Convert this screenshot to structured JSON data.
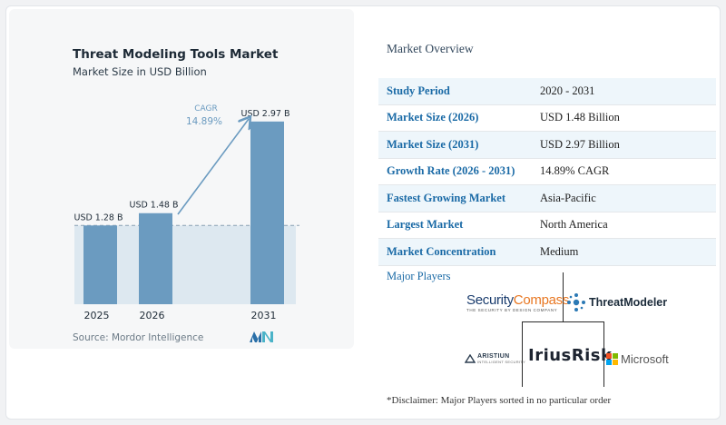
{
  "chart": {
    "title": "Threat Modeling Tools Market",
    "subtitle": "Market Size in USD Billion",
    "source": "Source: Mordor Intelligence",
    "cagr_label": "CAGR",
    "cagr_value": "14.89%"
  },
  "chart_data": {
    "type": "bar",
    "title": "Threat Modeling Tools Market",
    "subtitle": "Market Size in USD Billion",
    "categories": [
      "2025",
      "2026",
      "2031"
    ],
    "values": [
      1.28,
      1.48,
      2.97
    ],
    "data_labels": [
      "USD 1.28 B",
      "USD 1.48 B",
      "USD 2.97 B"
    ],
    "xlabel": "",
    "ylabel": "",
    "ylim": [
      0,
      3.1
    ],
    "grid": false,
    "reference_line_value": 1.28,
    "annotation": {
      "text": "CAGR",
      "value": "14.89%"
    },
    "colors": {
      "bar": "#6b9bc0",
      "bar_light": "#8fb6d4",
      "arrow": "#6b9bc0",
      "band": "#dde8f0"
    }
  },
  "overview": {
    "title": "Market Overview",
    "rows": [
      {
        "key": "Study Period",
        "value": "2020 - 2031"
      },
      {
        "key": "Market Size (2026)",
        "value": "USD 1.48 Billion"
      },
      {
        "key": "Market Size (2031)",
        "value": "USD 2.97 Billion"
      },
      {
        "key": "Growth Rate (2026 - 2031)",
        "value": "14.89% CAGR"
      },
      {
        "key": "Fastest Growing Market",
        "value": "Asia-Pacific"
      },
      {
        "key": "Largest Market",
        "value": "North America"
      },
      {
        "key": "Market Concentration",
        "value": "Medium"
      }
    ]
  },
  "players": {
    "title": "Major Players",
    "security_compass_a": "Security",
    "security_compass_b": "Compass",
    "security_compass_tagline": "THE SECURITY BY DESIGN COMPANY",
    "threatmodeler": "ThreatModeler",
    "aristiun": "ARISTIUN",
    "aristiun_tagline": "INTELLIGENT SECURITY",
    "iriusrisk": "IriusRisk",
    "microsoft": "Microsoft"
  },
  "disclaimer": "*Disclaimer: Major Players sorted in no particular order"
}
